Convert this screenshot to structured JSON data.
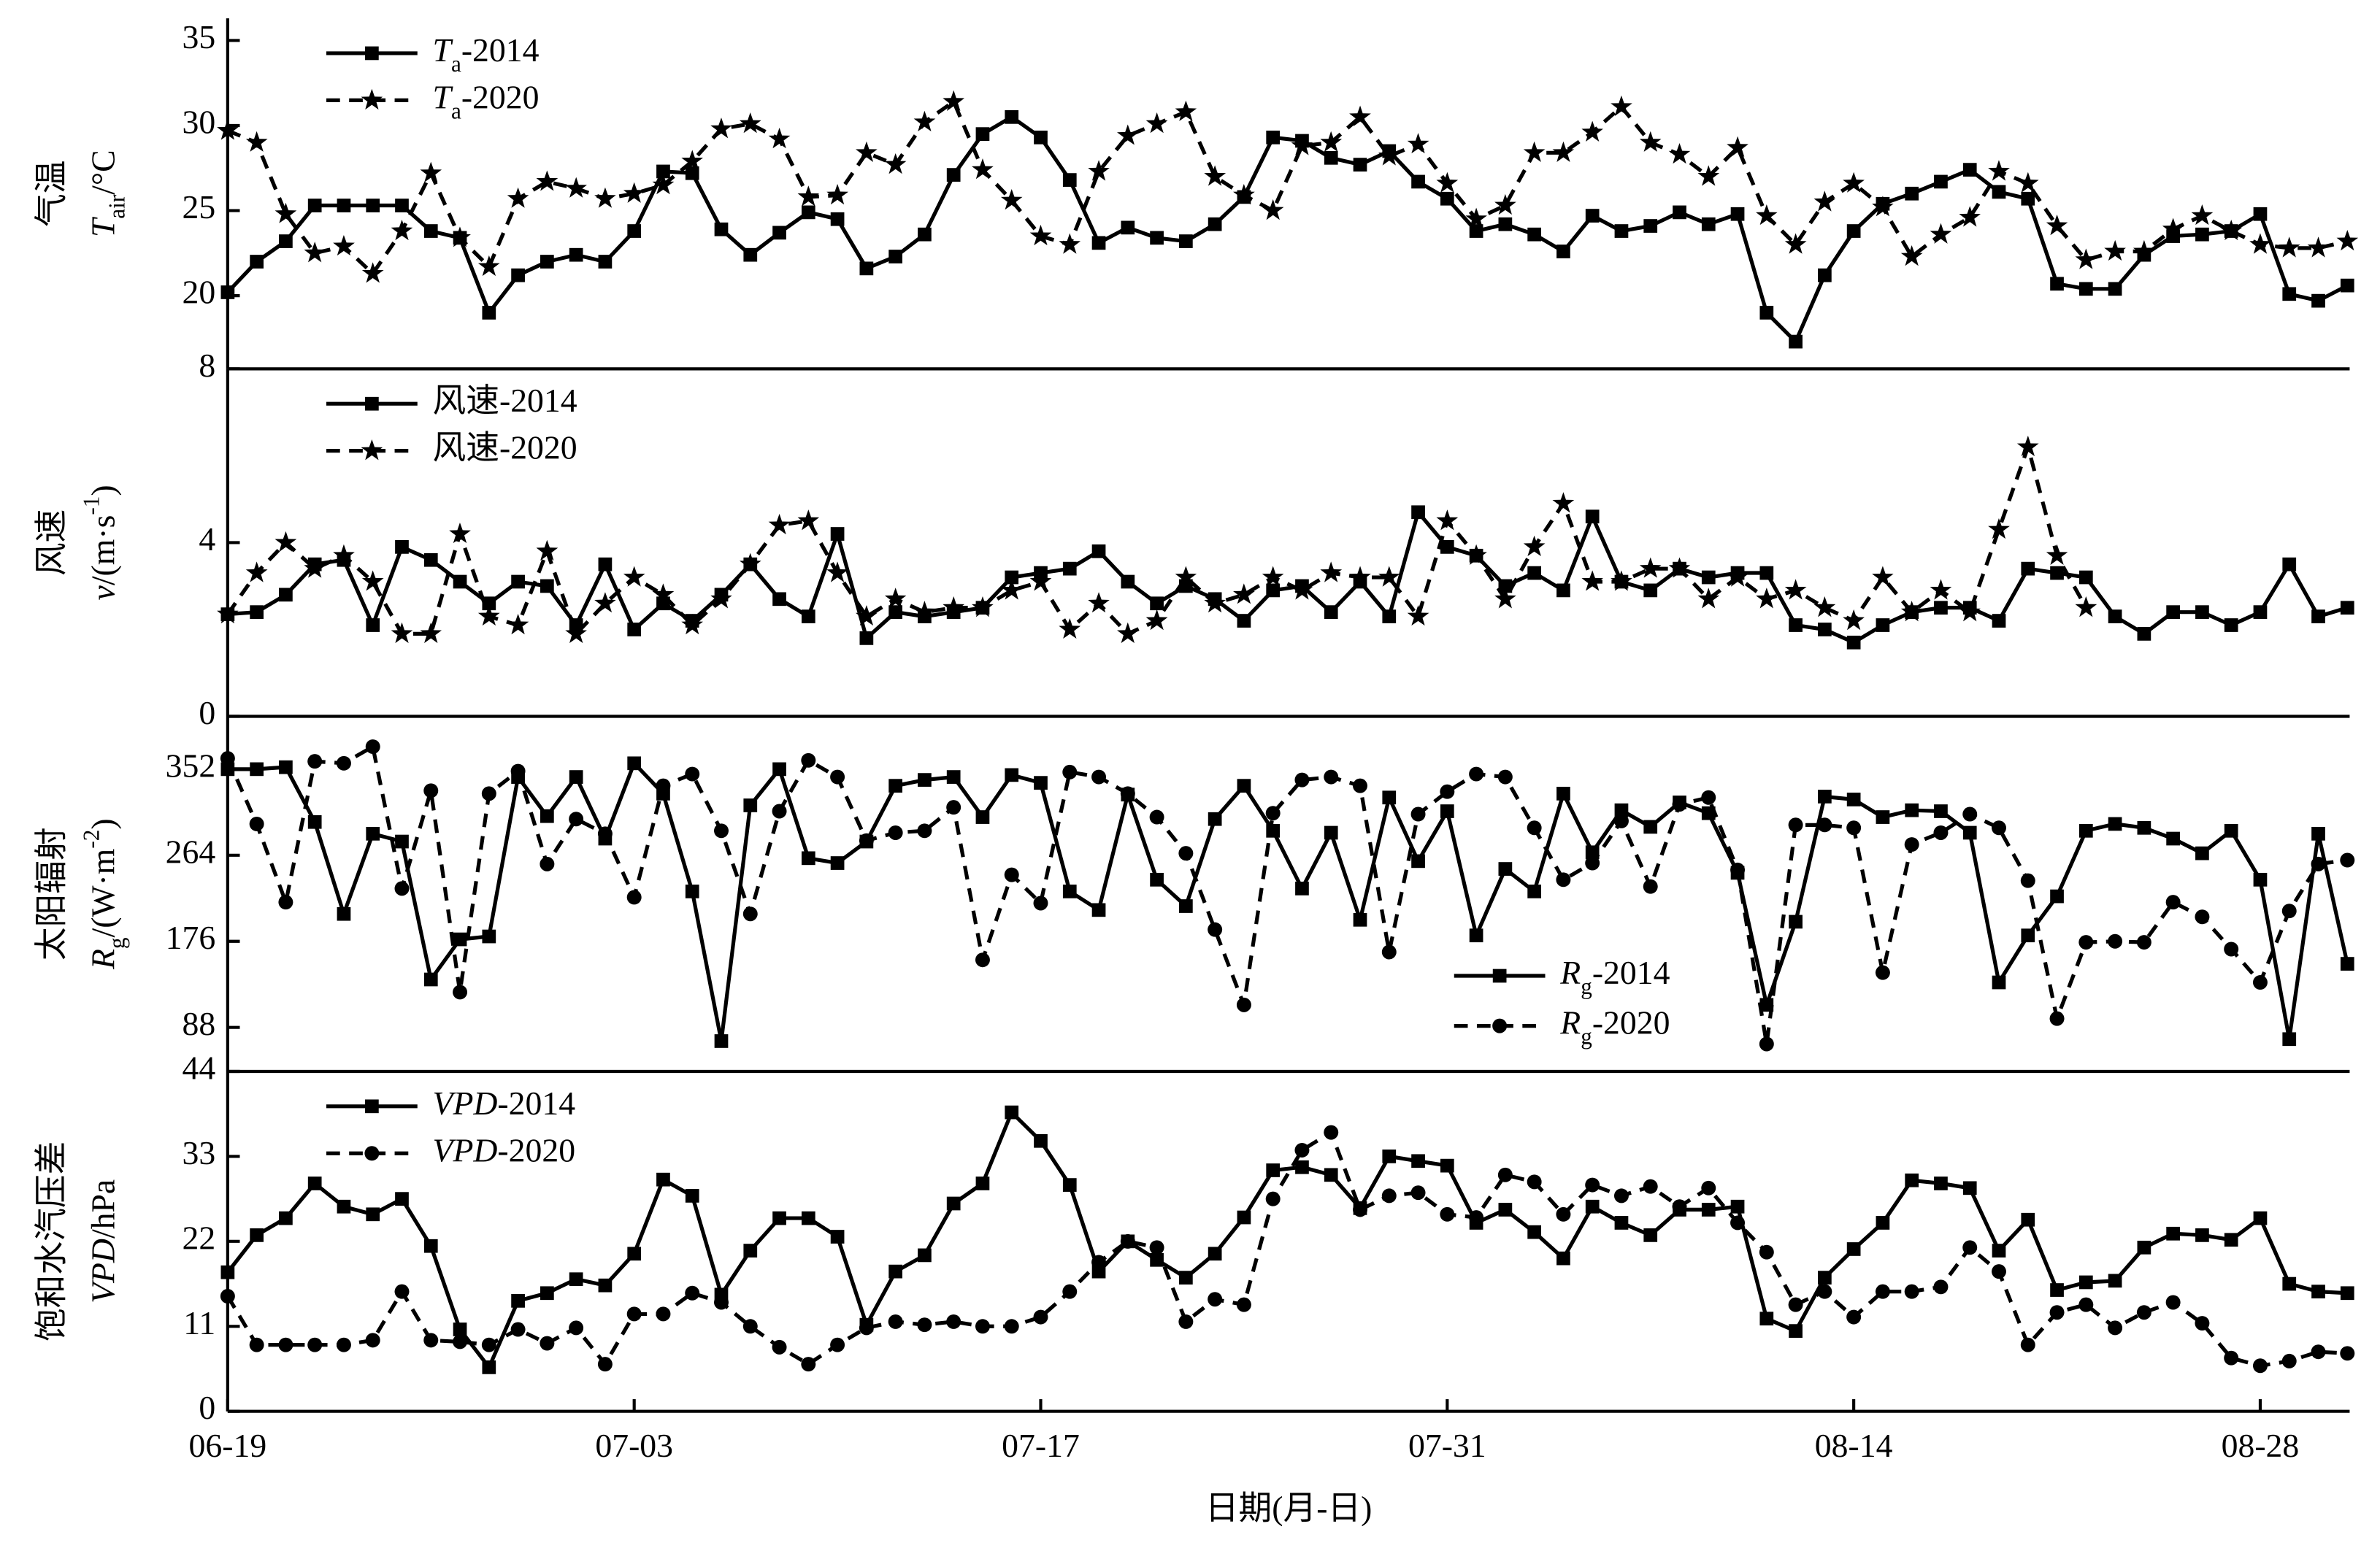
{
  "chart_data": [
    {
      "type": "line",
      "ylabel": {
        "line1": "气温",
        "line2": [
          {
            "text": "T",
            "style": "italic"
          },
          {
            "text": "air",
            "style": "sub"
          },
          {
            "text": "/°C"
          }
        ]
      },
      "ylim": [
        15.7,
        36.3
      ],
      "yticks": [
        20,
        25,
        30,
        35
      ],
      "legend": "upper left",
      "series": [
        {
          "name": [
            {
              "text": "T",
              "style": "italic"
            },
            {
              "text": "a",
              "style": "sub"
            },
            {
              "text": "-2014"
            }
          ],
          "color": "#000000",
          "marker": "square",
          "dash": "solid",
          "values": [
            20.2,
            22,
            23.2,
            25.3,
            25.3,
            25.3,
            25.3,
            23.8,
            23.4,
            19,
            21.2,
            22,
            22.4,
            22,
            23.8,
            27.3,
            27.2,
            23.9,
            22.4,
            23.7,
            24.9,
            24.5,
            21.6,
            22.3,
            23.6,
            27.1,
            29.5,
            30.5,
            29.3,
            26.8,
            23.1,
            24,
            23.4,
            23.2,
            24.2,
            25.8,
            29.3,
            29.1,
            28.1,
            27.7,
            28.5,
            26.7,
            25.7,
            23.8,
            24.2,
            23.6,
            22.6,
            24.7,
            23.8,
            24.1,
            24.9,
            24.2,
            24.8,
            19,
            17.3,
            21.2,
            23.8,
            25.4,
            26,
            26.7,
            27.4,
            26.1,
            25.7,
            20.7,
            20.4,
            20.4,
            22.4,
            23.5,
            23.6,
            23.8,
            24.8,
            20.1,
            19.7,
            20.6
          ]
        },
        {
          "name": [
            {
              "text": "T",
              "style": "italic"
            },
            {
              "text": "a",
              "style": "sub"
            },
            {
              "text": "-2020"
            }
          ],
          "color": "#000000",
          "marker": "star",
          "dash": "dashed",
          "values": [
            29.7,
            29,
            24.8,
            22.5,
            22.9,
            21.3,
            23.8,
            27.2,
            23.4,
            21.7,
            25.7,
            26.7,
            26.3,
            25.7,
            26,
            26.5,
            27.9,
            29.8,
            30.1,
            29.2,
            25.8,
            25.9,
            28.4,
            27.7,
            30.2,
            31.4,
            27.4,
            25.6,
            23.5,
            23,
            27.3,
            29.4,
            30.1,
            30.8,
            27,
            25.9,
            25,
            28.8,
            29,
            30.5,
            28.2,
            28.9,
            26.6,
            24.5,
            25.3,
            28.4,
            28.4,
            29.6,
            31.1,
            29,
            28.3,
            27,
            28.7,
            24.7,
            23,
            25.5,
            26.6,
            25.2,
            22.3,
            23.6,
            24.6,
            27.3,
            26.6,
            24.1,
            22.1,
            22.6,
            22.6,
            23.9,
            24.7,
            23.8,
            23,
            22.8,
            22.8,
            23.2
          ]
        }
      ]
    },
    {
      "type": "line",
      "ylabel": {
        "line1": "风速",
        "line2": [
          {
            "text": "v",
            "style": "italic"
          },
          {
            "text": "/(m·s"
          },
          {
            "text": "-1",
            "style": "sup"
          },
          {
            "text": ")"
          }
        ]
      },
      "ylim": [
        0,
        8
      ],
      "yticks": [
        0,
        4,
        8
      ],
      "legend": "upper left",
      "series": [
        {
          "name": [
            {
              "text": "风速-2014"
            }
          ],
          "color": "#000000",
          "marker": "square",
          "dash": "solid",
          "values": [
            2.35,
            2.4,
            2.8,
            3.5,
            3.6,
            2.1,
            3.9,
            3.6,
            3.1,
            2.6,
            3.1,
            3.0,
            2.1,
            3.5,
            2.0,
            2.6,
            2.2,
            2.8,
            3.5,
            2.7,
            2.3,
            4.2,
            1.8,
            2.4,
            2.3,
            2.4,
            2.5,
            3.2,
            3.3,
            3.4,
            3.8,
            3.1,
            2.6,
            3.0,
            2.7,
            2.2,
            2.9,
            3.0,
            2.4,
            3.1,
            2.3,
            4.7,
            3.9,
            3.7,
            3.0,
            3.3,
            2.9,
            4.6,
            3.1,
            2.9,
            3.4,
            3.2,
            3.3,
            3.3,
            2.1,
            2.0,
            1.7,
            2.1,
            2.4,
            2.5,
            2.5,
            2.2,
            3.4,
            3.3,
            3.2,
            2.3,
            1.9,
            2.4,
            2.4,
            2.1,
            2.4,
            3.5,
            2.3,
            2.5
          ]
        },
        {
          "name": [
            {
              "text": "风速-2020"
            }
          ],
          "color": "#000000",
          "marker": "star",
          "dash": "dashed",
          "values": [
            2.35,
            3.3,
            4.0,
            3.4,
            3.7,
            3.1,
            1.9,
            1.9,
            4.2,
            2.3,
            2.1,
            3.8,
            1.9,
            2.6,
            3.2,
            2.8,
            2.1,
            2.7,
            3.5,
            4.4,
            4.5,
            3.3,
            2.3,
            2.7,
            2.4,
            2.5,
            2.5,
            2.9,
            3.1,
            2.0,
            2.6,
            1.9,
            2.2,
            3.2,
            2.6,
            2.8,
            3.2,
            2.9,
            3.3,
            3.2,
            3.2,
            2.3,
            4.5,
            3.7,
            2.7,
            3.9,
            4.9,
            3.1,
            3.1,
            3.4,
            3.4,
            2.7,
            3.2,
            2.7,
            2.9,
            2.5,
            2.2,
            3.2,
            2.4,
            2.9,
            2.4,
            4.3,
            6.2,
            3.7,
            2.5,
            null,
            null,
            null,
            null,
            null,
            null,
            null,
            null,
            null
          ]
        }
      ]
    },
    {
      "type": "line",
      "ylabel": {
        "line1": "太阳辐射",
        "line2": [
          {
            "text": "R",
            "style": "italic"
          },
          {
            "text": "g",
            "style": "sub"
          },
          {
            "text": "/(W·m"
          },
          {
            "text": "-2",
            "style": "sup"
          },
          {
            "text": ")"
          }
        ]
      },
      "ylim": [
        43,
        406
      ],
      "yticks": [
        88,
        176,
        264,
        352
      ],
      "legend": "lower right",
      "series": [
        {
          "name": [
            {
              "text": "R",
              "style": "italic"
            },
            {
              "text": "g",
              "style": "sub"
            },
            {
              "text": "-2014"
            }
          ],
          "color": "#000000",
          "marker": "square",
          "dash": "solid",
          "values": [
            352,
            352,
            354,
            298,
            204,
            286,
            278,
            137,
            178,
            181,
            344,
            304,
            344,
            281,
            358,
            327,
            227,
            74,
            315,
            352,
            261,
            256,
            278,
            335,
            341,
            344,
            303,
            346,
            338,
            227,
            208,
            326,
            239,
            212,
            301,
            335,
            289,
            230,
            287,
            198,
            323,
            258,
            309,
            182,
            250,
            227,
            327,
            267,
            310,
            293,
            318,
            307,
            246,
            111,
            196,
            324,
            321,
            303,
            310,
            309,
            287,
            134,
            182,
            222,
            289,
            296,
            292,
            281,
            266,
            289,
            239,
            76,
            286,
            153
          ]
        },
        {
          "name": [
            {
              "text": "R",
              "style": "italic"
            },
            {
              "text": "g",
              "style": "sub"
            },
            {
              "text": "-2020"
            }
          ],
          "color": "#000000",
          "marker": "circle",
          "dash": "dashed",
          "values": [
            363,
            296,
            216,
            360,
            358,
            375,
            230,
            330,
            124,
            327,
            350,
            255,
            301,
            286,
            221,
            335,
            347,
            289,
            204,
            309,
            361,
            344,
            279,
            287,
            289,
            313,
            157,
            244,
            215,
            349,
            344,
            327,
            303,
            266,
            188,
            111,
            307,
            341,
            344,
            335,
            165,
            306,
            329,
            347,
            344,
            292,
            239,
            256,
            299,
            232,
            316,
            323,
            249,
            71,
            295,
            295,
            292,
            144,
            275,
            287,
            306,
            292,
            238,
            97,
            175,
            176,
            175,
            216,
            201,
            168,
            134,
            207,
            255,
            259
          ]
        }
      ]
    },
    {
      "type": "line",
      "ylabel": {
        "line1": "饱和水汽压差",
        "line2": [
          {
            "text": "VPD",
            "style": "italic"
          },
          {
            "text": "/hPa"
          }
        ]
      },
      "ylim": [
        0,
        44
      ],
      "yticks": [
        0,
        11,
        22,
        33,
        44
      ],
      "legend": "upper left",
      "xlabel": "日期(月-日)",
      "x": [
        "06-19",
        "06-20",
        "06-21",
        "06-22",
        "06-23",
        "06-24",
        "06-25",
        "06-26",
        "06-27",
        "06-28",
        "06-29",
        "06-30",
        "07-01",
        "07-02",
        "07-03",
        "07-04",
        "07-05",
        "07-06",
        "07-07",
        "07-08",
        "07-09",
        "07-10",
        "07-11",
        "07-12",
        "07-13",
        "07-14",
        "07-15",
        "07-16",
        "07-17",
        "07-18",
        "07-19",
        "07-20",
        "07-21",
        "07-22",
        "07-23",
        "07-24",
        "07-25",
        "07-26",
        "07-27",
        "07-28",
        "07-29",
        "07-30",
        "07-31",
        "08-01",
        "08-02",
        "08-03",
        "08-04",
        "08-05",
        "08-06",
        "08-07",
        "08-08",
        "08-09",
        "08-10",
        "08-11",
        "08-12",
        "08-13",
        "08-14",
        "08-15",
        "08-16",
        "08-17",
        "08-18",
        "08-19",
        "08-20",
        "08-21",
        "08-22",
        "08-23",
        "08-24",
        "08-25",
        "08-26",
        "08-27",
        "08-28",
        "08-29",
        "08-30",
        "08-31"
      ],
      "xticks": [
        "06-19",
        "07-03",
        "07-17",
        "07-31",
        "08-14",
        "08-28"
      ],
      "series": [
        {
          "name": [
            {
              "text": "VPD",
              "style": "italic"
            },
            {
              "text": "-2014"
            }
          ],
          "color": "#000000",
          "marker": "square",
          "dash": "solid",
          "values": [
            18,
            22.8,
            25,
            29.5,
            26.5,
            25.5,
            27.5,
            21.4,
            10.6,
            5.7,
            14.3,
            15.3,
            17.1,
            16.3,
            20.4,
            30,
            27.9,
            15.1,
            20.8,
            25,
            25,
            22.6,
            11.2,
            18.1,
            20.2,
            26.9,
            29.5,
            38.7,
            35,
            29.3,
            18.1,
            22,
            19.6,
            17.3,
            20.4,
            25.1,
            31.2,
            31.6,
            30.6,
            26.3,
            33,
            32.4,
            31.8,
            24.4,
            26.1,
            23.2,
            19.8,
            26.5,
            24.4,
            22.8,
            26.1,
            26.1,
            26.5,
            12,
            10.4,
            17.3,
            21,
            24.4,
            29.9,
            29.5,
            28.9,
            20.8,
            24.8,
            15.7,
            16.7,
            16.9,
            21.2,
            23,
            22.8,
            22.2,
            25,
            16.5,
            15.5,
            15.3
          ]
        },
        {
          "name": [
            {
              "text": "VPD",
              "style": "italic"
            },
            {
              "text": "-2020"
            }
          ],
          "color": "#000000",
          "marker": "circle",
          "dash": "dashed",
          "values": [
            14.9,
            8.6,
            8.6,
            8.6,
            8.6,
            9.2,
            15.5,
            9.2,
            9,
            8.6,
            10.6,
            8.8,
            10.8,
            6.1,
            12.6,
            12.6,
            15.3,
            14.1,
            11,
            8.3,
            6.1,
            8.6,
            10.8,
            11.6,
            11.2,
            11.6,
            11,
            11,
            12.2,
            15.5,
            19.3,
            22,
            21.2,
            11.6,
            14.5,
            13.8,
            27.5,
            33.8,
            36.1,
            26.1,
            27.9,
            28.3,
            25.5,
            25.1,
            30.6,
            29.7,
            25.5,
            29.3,
            27.9,
            29.1,
            26.5,
            28.9,
            24.4,
            20.6,
            13.8,
            15.5,
            12.2,
            15.5,
            15.5,
            16.1,
            21.2,
            18.1,
            8.6,
            12.8,
            13.8,
            10.8,
            12.8,
            14.1,
            11.4,
            6.9,
            5.9,
            6.5,
            7.7,
            7.5
          ]
        }
      ]
    }
  ]
}
